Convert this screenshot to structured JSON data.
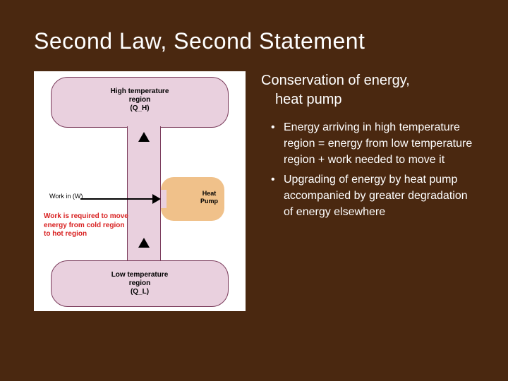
{
  "title": "Second Law, Second Statement",
  "subtitle_line1": "Conservation of energy,",
  "subtitle_line2": "heat pump",
  "bullets": [
    "Energy arriving in high temperature region = energy from low temperature region + work needed to move it",
    "Upgrading of energy by heat pump accompanied by greater degradation of energy elsewhere"
  ],
  "diagram": {
    "type": "flowchart",
    "background_color": "#ffffff",
    "region_fill": "#e9d0de",
    "region_border": "#7a3b5b",
    "pump_fill": "#f0c18a",
    "arrow_color": "#000000",
    "high_region_label_l1": "High temperature",
    "high_region_label_l2": "region",
    "high_region_label_l3": "(Q_H)",
    "low_region_label_l1": "Low temperature",
    "low_region_label_l2": "region",
    "low_region_label_l3": "(Q_L)",
    "pump_label_l1": "Heat",
    "pump_label_l2": "Pump",
    "work_label": "Work in (W)",
    "red_note": "Work is required to move energy from cold region to hot region",
    "red_note_color": "#d82020",
    "label_fontsize": 10
  },
  "slide_background": "#4a2810",
  "text_color": "#ffffff",
  "title_fontsize": 32,
  "subtitle_fontsize": 20,
  "bullet_fontsize": 16
}
